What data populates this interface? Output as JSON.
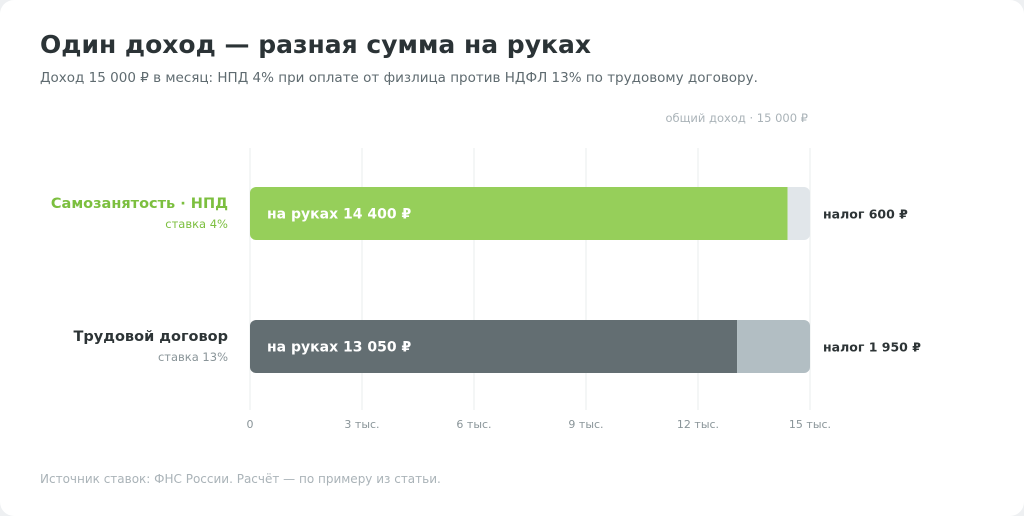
{
  "header": {
    "title": "Один доход — разная сумма на руках",
    "subtitle": "Доход 15 000 ₽ в месяц: НПД 4% при оплате от физлица против НДФЛ 13% по трудовому договору."
  },
  "total_note": "общий доход · 15 000 ₽",
  "footer": {
    "source": "Источник ставок: ФНС России. Расчёт — по примеру из статьи."
  },
  "colors": {
    "npd_net": "#96cf5a",
    "npd_tax": "#e1e6ea",
    "npd_label": "#7cbf3f",
    "labor_net": "#636e72",
    "labor_tax": "#b2bec3",
    "labor_label": "#2d3436"
  },
  "chart_data": {
    "type": "bar",
    "orientation": "horizontal",
    "stacked": true,
    "categories": [
      "Самозанятость · НПД",
      "Трудовой договор"
    ],
    "category_notes": [
      "ставка 4%",
      "ставка 13%"
    ],
    "series": [
      {
        "values": [
          14400,
          13050
        ],
        "labels": [
          "на руках  14 400 ₽",
          "на руках  13 050 ₽"
        ]
      },
      {
        "values": [
          600,
          1950
        ],
        "labels": [
          "налог  600 ₽",
          "налог  1 950 ₽"
        ]
      }
    ],
    "xlim": [
      0,
      15000
    ],
    "xticks": [
      0,
      3000,
      6000,
      9000,
      12000,
      15000
    ],
    "xtick_labels": [
      "0",
      "3 тыс.",
      "6 тыс.",
      "9 тыс.",
      "12 тыс.",
      "15 тыс."
    ],
    "grid": true
  }
}
